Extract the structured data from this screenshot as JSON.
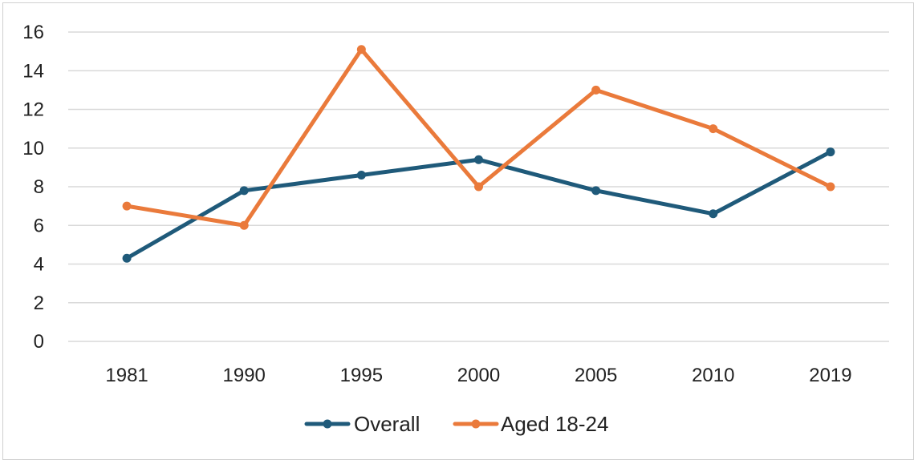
{
  "chart_data": {
    "type": "line",
    "title": "",
    "xlabel": "",
    "ylabel": "",
    "categories": [
      "1981",
      "1990",
      "1995",
      "2000",
      "2005",
      "2010",
      "2019"
    ],
    "ylim": [
      0,
      16
    ],
    "yticks": [
      0,
      2,
      4,
      6,
      8,
      10,
      12,
      14,
      16
    ],
    "grid": "horizontal",
    "legend_position": "bottom",
    "series": [
      {
        "name": "Overall",
        "color": "#1f5a7a",
        "values": [
          4.3,
          7.8,
          8.6,
          9.4,
          7.8,
          6.6,
          9.8
        ]
      },
      {
        "name": "Aged 18-24",
        "color": "#ea7a3b",
        "values": [
          7.0,
          6.0,
          15.1,
          8.0,
          13.0,
          11.0,
          8.0
        ]
      }
    ]
  }
}
